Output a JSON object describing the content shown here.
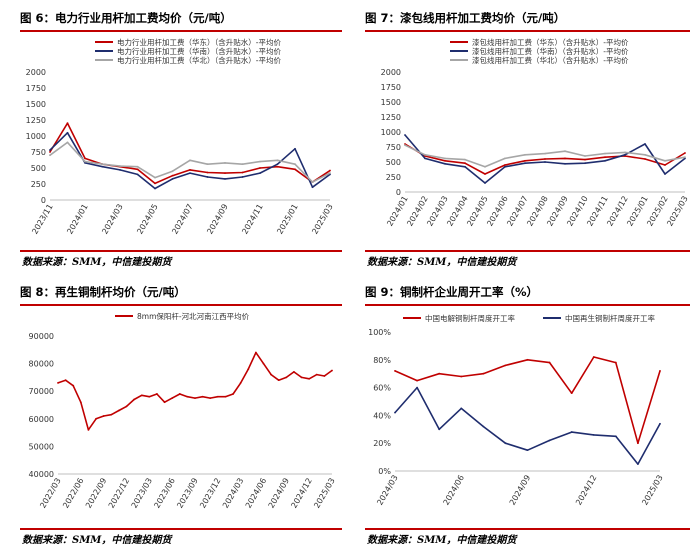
{
  "source_text": "数据来源：SMM，中信建投期货",
  "colors": {
    "red": "#c00000",
    "navy": "#1f2d6e",
    "gray": "#a6a6a6",
    "rule": "#c00000"
  },
  "chart_data": [
    {
      "id": "fig6",
      "type": "line",
      "title": "图 6：电力行业用杆加工费均价（元/吨）",
      "ylim": [
        0,
        2000
      ],
      "yticks": [
        0,
        250,
        500,
        750,
        1000,
        1250,
        1500,
        1750,
        2000
      ],
      "x_ticks": [
        "2023/11",
        "2024/01",
        "2024/03",
        "2024/05",
        "2024/07",
        "2024/09",
        "2024/11",
        "2025/01",
        "2025/03"
      ],
      "x_range": [
        "2023/11",
        "2025/03"
      ],
      "legend_position": "top",
      "series": [
        {
          "name": "电力行业用杆加工费（华东）（含升贴水）-平均价",
          "color": "#c00000",
          "x": [
            "2023/11",
            "2023/12",
            "2024/01",
            "2024/02",
            "2024/03",
            "2024/04",
            "2024/05",
            "2024/06",
            "2024/07",
            "2024/08",
            "2024/09",
            "2024/10",
            "2024/11",
            "2024/12",
            "2025/01",
            "2025/02",
            "2025/03"
          ],
          "values": [
            750,
            1200,
            650,
            560,
            520,
            480,
            260,
            380,
            470,
            430,
            420,
            430,
            500,
            520,
            480,
            280,
            460
          ]
        },
        {
          "name": "电力行业用杆加工费（华南）（含升贴水）-平均价",
          "color": "#1f2d6e",
          "x": [
            "2023/11",
            "2023/12",
            "2024/01",
            "2024/02",
            "2024/03",
            "2024/04",
            "2024/05",
            "2024/06",
            "2024/07",
            "2024/08",
            "2024/09",
            "2024/10",
            "2024/11",
            "2024/12",
            "2025/01",
            "2025/02",
            "2025/03"
          ],
          "values": [
            780,
            1050,
            580,
            520,
            470,
            400,
            180,
            330,
            420,
            360,
            330,
            360,
            420,
            560,
            800,
            200,
            400
          ]
        },
        {
          "name": "电力行业用杆加工费（华北）（含升贴水）-平均价",
          "color": "#a6a6a6",
          "x": [
            "2023/11",
            "2023/12",
            "2024/01",
            "2024/02",
            "2024/03",
            "2024/04",
            "2024/05",
            "2024/06",
            "2024/07",
            "2024/08",
            "2024/09",
            "2024/10",
            "2024/11",
            "2024/12",
            "2025/01",
            "2025/02",
            "2025/03"
          ],
          "values": [
            700,
            900,
            600,
            560,
            530,
            520,
            350,
            450,
            620,
            560,
            580,
            560,
            600,
            620,
            560,
            280,
            420
          ]
        }
      ]
    },
    {
      "id": "fig7",
      "type": "line",
      "title": "图 7：漆包线用杆加工费均价（元/吨）",
      "ylim": [
        0,
        2000
      ],
      "yticks": [
        0,
        250,
        500,
        750,
        1000,
        1250,
        1500,
        1750,
        2000
      ],
      "x_ticks": [
        "2024/01",
        "2024/02",
        "2024/03",
        "2024/04",
        "2024/05",
        "2024/06",
        "2024/07",
        "2024/08",
        "2024/09",
        "2024/10",
        "2024/11",
        "2024/12",
        "2025/01",
        "2025/02",
        "2025/03"
      ],
      "x_range": [
        "2024/01",
        "2025/03"
      ],
      "legend_position": "top",
      "series": [
        {
          "name": "漆包线用杆加工费（华东）（含升贴水）-平均价",
          "color": "#c00000",
          "x": [
            "2024/01",
            "2024/02",
            "2024/03",
            "2024/04",
            "2024/05",
            "2024/06",
            "2024/07",
            "2024/08",
            "2024/09",
            "2024/10",
            "2024/11",
            "2024/12",
            "2025/01",
            "2025/02",
            "2025/03"
          ],
          "values": [
            800,
            600,
            520,
            480,
            300,
            450,
            520,
            550,
            560,
            540,
            580,
            600,
            550,
            450,
            650
          ]
        },
        {
          "name": "漆包线用杆加工费（华南）（含升贴水）-平均价",
          "color": "#1f2d6e",
          "x": [
            "2024/01",
            "2024/02",
            "2024/03",
            "2024/04",
            "2024/05",
            "2024/06",
            "2024/07",
            "2024/08",
            "2024/09",
            "2024/10",
            "2024/11",
            "2024/12",
            "2025/01",
            "2025/02",
            "2025/03"
          ],
          "values": [
            950,
            560,
            470,
            420,
            150,
            420,
            480,
            500,
            470,
            480,
            520,
            620,
            800,
            300,
            560
          ]
        },
        {
          "name": "漆包线用杆加工费（华北）（含升贴水）-平均价",
          "color": "#a6a6a6",
          "x": [
            "2024/01",
            "2024/02",
            "2024/03",
            "2024/04",
            "2024/05",
            "2024/06",
            "2024/07",
            "2024/08",
            "2024/09",
            "2024/10",
            "2024/11",
            "2024/12",
            "2025/01",
            "2025/02",
            "2025/03"
          ],
          "values": [
            780,
            620,
            560,
            540,
            420,
            560,
            620,
            640,
            680,
            600,
            640,
            660,
            620,
            520,
            580
          ]
        }
      ]
    },
    {
      "id": "fig8",
      "type": "line",
      "title": "图 8：再生铜制杆均价（元/吨）",
      "ylim": [
        40000,
        90000
      ],
      "yticks": [
        40000,
        50000,
        60000,
        70000,
        80000,
        90000
      ],
      "x_ticks": [
        "2022/03",
        "2022/06",
        "2022/09",
        "2022/12",
        "2023/03",
        "2023/06",
        "2023/09",
        "2023/12",
        "2024/03",
        "2024/06",
        "2024/09",
        "2024/12",
        "2025/03"
      ],
      "x_range": [
        "2022/03",
        "2025/03"
      ],
      "legend_position": "top",
      "series": [
        {
          "name": "8mm保阳杆-河北河南江西平均价",
          "color": "#c00000",
          "x": [
            "2022/03",
            "2022/04",
            "2022/05",
            "2022/06",
            "2022/07",
            "2022/08",
            "2022/09",
            "2022/10",
            "2022/11",
            "2022/12",
            "2023/01",
            "2023/02",
            "2023/03",
            "2023/04",
            "2023/05",
            "2023/06",
            "2023/07",
            "2023/08",
            "2023/09",
            "2023/10",
            "2023/11",
            "2023/12",
            "2024/01",
            "2024/02",
            "2024/03",
            "2024/04",
            "2024/05",
            "2024/06",
            "2024/07",
            "2024/08",
            "2024/09",
            "2024/10",
            "2024/11",
            "2024/12",
            "2025/01",
            "2025/02",
            "2025/03"
          ],
          "values": [
            73000,
            74000,
            72000,
            66000,
            56000,
            60000,
            61000,
            61500,
            63000,
            64500,
            67000,
            68500,
            68000,
            69000,
            66000,
            67500,
            69000,
            68000,
            67500,
            68000,
            67500,
            68000,
            68000,
            69000,
            73000,
            78000,
            84000,
            80000,
            76000,
            74000,
            75000,
            77000,
            75000,
            74500,
            76000,
            75500,
            77500
          ]
        }
      ]
    },
    {
      "id": "fig9",
      "type": "line",
      "title": "图 9：铜制杆企业周开工率（%）",
      "ylim": [
        0,
        100
      ],
      "yticks": [
        "0%",
        "20%",
        "40%",
        "60%",
        "80%",
        "100%"
      ],
      "x_ticks": [
        "2024/03",
        "2024/06",
        "2024/09",
        "2024/12",
        "2025/03"
      ],
      "x_range": [
        "2024/03",
        "2025/03"
      ],
      "legend_position": "top",
      "series": [
        {
          "name": "中国电解铜制杆周度开工率",
          "color": "#c00000",
          "x": [
            "2024/03",
            "2024/04",
            "2024/05",
            "2024/06",
            "2024/07",
            "2024/08",
            "2024/09",
            "2024/10",
            "2024/11",
            "2024/12",
            "2025/01",
            "2025/02",
            "2025/03"
          ],
          "values": [
            72,
            65,
            70,
            68,
            70,
            76,
            80,
            78,
            56,
            82,
            78,
            20,
            72
          ]
        },
        {
          "name": "中国再生铜制杆周度开工率",
          "color": "#1f2d6e",
          "x": [
            "2024/03",
            "2024/04",
            "2024/05",
            "2024/06",
            "2024/07",
            "2024/08",
            "2024/09",
            "2024/10",
            "2024/11",
            "2024/12",
            "2025/01",
            "2025/02",
            "2025/03"
          ],
          "values": [
            42,
            60,
            30,
            45,
            32,
            20,
            15,
            22,
            28,
            26,
            25,
            5,
            34
          ]
        }
      ]
    }
  ]
}
